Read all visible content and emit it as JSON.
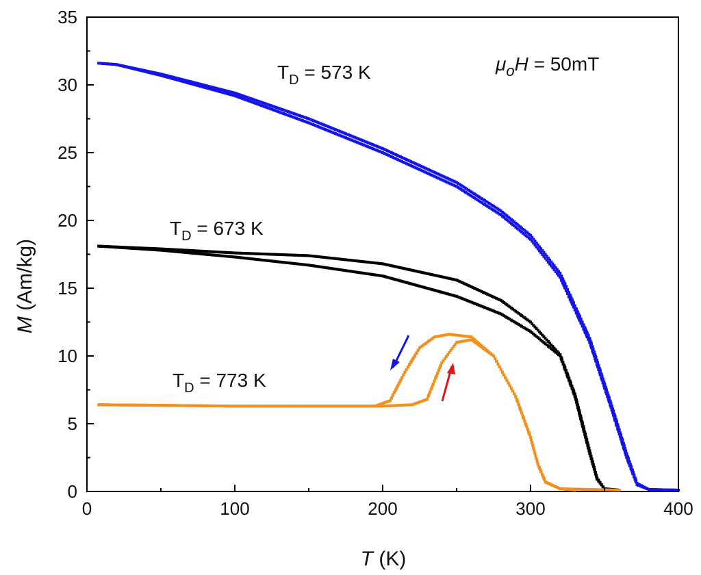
{
  "chart_data": {
    "type": "scatter",
    "x_axis": {
      "label_italic": "T",
      "label_rest": " (K)",
      "range": [
        0,
        400
      ],
      "ticks": [
        0,
        100,
        200,
        300,
        400
      ],
      "tick_labels": [
        "0",
        "100",
        "200",
        "300",
        "400"
      ]
    },
    "y_axis": {
      "label_italic": "M",
      "label_rest": " (Am/kg)",
      "range": [
        0,
        35
      ],
      "ticks": [
        0,
        5,
        10,
        15,
        20,
        25,
        30,
        35
      ],
      "tick_labels": [
        "0",
        "5",
        "10",
        "15",
        "20",
        "25",
        "30",
        "35"
      ]
    },
    "field_label": {
      "mu": "μ",
      "sub": "o",
      "H": "H",
      "rest": " = 50mT"
    },
    "series": [
      {
        "label_main": "T",
        "label_sub": "D",
        "label_rest": " = 573 K",
        "color": "#1414e6",
        "branches": [
          [
            [
              8,
              31.6
            ],
            [
              20,
              31.5
            ],
            [
              50,
              30.7
            ],
            [
              100,
              29.2
            ],
            [
              150,
              27.2
            ],
            [
              200,
              25.0
            ],
            [
              250,
              22.5
            ],
            [
              280,
              20.4
            ],
            [
              300,
              18.6
            ],
            [
              320,
              15.8
            ],
            [
              340,
              11.0
            ],
            [
              355,
              6.0
            ],
            [
              365,
              2.5
            ],
            [
              372,
              0.5
            ],
            [
              380,
              0.15
            ],
            [
              400,
              0.1
            ]
          ],
          [
            [
              8,
              31.6
            ],
            [
              20,
              31.5
            ],
            [
              50,
              30.8
            ],
            [
              100,
              29.4
            ],
            [
              150,
              27.5
            ],
            [
              200,
              25.3
            ],
            [
              250,
              22.8
            ],
            [
              280,
              20.7
            ],
            [
              300,
              18.9
            ],
            [
              320,
              16.1
            ],
            [
              340,
              11.3
            ],
            [
              355,
              6.3
            ],
            [
              365,
              2.8
            ],
            [
              372,
              0.6
            ],
            [
              380,
              0.15
            ],
            [
              400,
              0.1
            ]
          ]
        ]
      },
      {
        "label_main": "T",
        "label_sub": "D",
        "label_rest": " = 673 K",
        "color": "#000000",
        "branches": [
          [
            [
              8,
              18.1
            ],
            [
              50,
              17.9
            ],
            [
              100,
              17.6
            ],
            [
              150,
              17.4
            ],
            [
              200,
              16.8
            ],
            [
              250,
              15.6
            ],
            [
              280,
              14.1
            ],
            [
              300,
              12.5
            ],
            [
              320,
              10.1
            ],
            [
              330,
              7.2
            ],
            [
              340,
              3.0
            ],
            [
              345,
              1.0
            ],
            [
              350,
              0.2
            ],
            [
              360,
              0.1
            ]
          ],
          [
            [
              8,
              18.1
            ],
            [
              50,
              17.8
            ],
            [
              100,
              17.3
            ],
            [
              150,
              16.7
            ],
            [
              200,
              15.9
            ],
            [
              250,
              14.4
            ],
            [
              280,
              13.1
            ],
            [
              300,
              11.8
            ],
            [
              320,
              10.0
            ],
            [
              330,
              7.0
            ],
            [
              340,
              2.8
            ],
            [
              345,
              0.9
            ],
            [
              350,
              0.2
            ],
            [
              360,
              0.1
            ]
          ]
        ]
      },
      {
        "label_main": "T",
        "label_sub": "D",
        "label_rest": " = 773 K",
        "color": "#f0901e",
        "branches": [
          [
            [
              8,
              6.4
            ],
            [
              100,
              6.3
            ],
            [
              195,
              6.3
            ],
            [
              205,
              6.7
            ],
            [
              215,
              8.8
            ],
            [
              225,
              10.6
            ],
            [
              235,
              11.4
            ],
            [
              245,
              11.6
            ],
            [
              260,
              11.4
            ],
            [
              275,
              10.0
            ],
            [
              290,
              7.0
            ],
            [
              300,
              4.0
            ],
            [
              305,
              2.0
            ],
            [
              310,
              0.7
            ],
            [
              320,
              0.2
            ],
            [
              330,
              0.1
            ]
          ],
          [
            [
              8,
              6.4
            ],
            [
              100,
              6.3
            ],
            [
              200,
              6.3
            ],
            [
              220,
              6.4
            ],
            [
              230,
              6.8
            ],
            [
              240,
              9.5
            ],
            [
              250,
              11.0
            ],
            [
              260,
              11.2
            ],
            [
              275,
              10.0
            ],
            [
              290,
              7.0
            ],
            [
              300,
              4.0
            ],
            [
              305,
              2.0
            ],
            [
              310,
              0.7
            ],
            [
              320,
              0.2
            ],
            [
              360,
              0.1
            ]
          ]
        ]
      }
    ]
  }
}
